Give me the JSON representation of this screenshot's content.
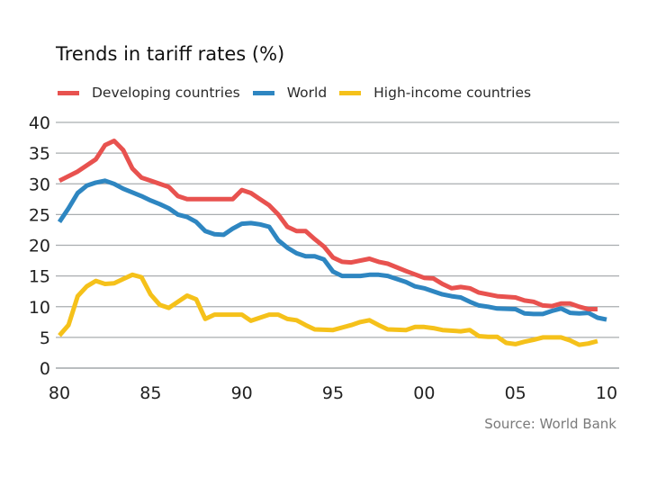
{
  "chart_data": {
    "type": "line",
    "title": "Trends in tariff rates (%)",
    "xlabel": "",
    "ylabel": "",
    "source": "Source: World Bank",
    "xlim": [
      1980,
      2010
    ],
    "ylim": [
      0,
      40
    ],
    "grid": true,
    "legend_position": "top-left",
    "x_ticks": [
      1980,
      1985,
      1990,
      1995,
      2000,
      2005,
      2010
    ],
    "x_tick_labels": [
      "80",
      "85",
      "90",
      "95",
      "00",
      "05",
      "10"
    ],
    "y_ticks": [
      0,
      5,
      10,
      15,
      20,
      25,
      30,
      35,
      40
    ],
    "y_tick_labels": [
      "0",
      "5",
      "10",
      "15",
      "20",
      "25",
      "30",
      "35",
      "40"
    ],
    "series": [
      {
        "name": "Developing countries",
        "color": "#e8524f",
        "x": [
          1980,
          1981,
          1982,
          1982.5,
          1983,
          1983.5,
          1984,
          1984.5,
          1985,
          1986,
          1986.5,
          1987,
          1988,
          1989,
          1989.5,
          1990,
          1990.5,
          1991,
          1991.5,
          1992,
          1992.5,
          1993,
          1993.5,
          1994,
          1994.5,
          1995,
          1995.5,
          1996,
          1997,
          1997.5,
          1998,
          1999,
          2000,
          2000.5,
          2001,
          2001.5,
          2002,
          2002.5,
          2003,
          2003.5,
          2004,
          2005,
          2005.5,
          2006,
          2006.5,
          2007,
          2007.5,
          2008,
          2008.5,
          2009,
          2009.5
        ],
        "y": [
          30.5,
          32,
          34,
          36.3,
          37,
          35.5,
          32.5,
          31,
          30.5,
          29.5,
          28,
          27.5,
          27.5,
          27.5,
          27.5,
          29,
          28.5,
          27.5,
          26.5,
          25,
          23,
          22.3,
          22.3,
          21,
          19.8,
          18,
          17.3,
          17.2,
          17.8,
          17.3,
          17,
          15.8,
          14.7,
          14.6,
          13.7,
          13,
          13.2,
          13,
          12.3,
          12,
          11.7,
          11.5,
          11,
          10.8,
          10.2,
          10.1,
          10.5,
          10.5,
          10,
          9.6,
          9.6
        ]
      },
      {
        "name": "World",
        "color": "#2e86c1",
        "x": [
          1980,
          1980.5,
          1981,
          1981.5,
          1982,
          1982.5,
          1983,
          1983.5,
          1984,
          1984.5,
          1985,
          1985.5,
          1986,
          1986.5,
          1987,
          1987.5,
          1988,
          1988.5,
          1989,
          1989.5,
          1990,
          1990.5,
          1991,
          1991.5,
          1992,
          1992.5,
          1993,
          1993.5,
          1994,
          1994.5,
          1995,
          1995.5,
          1996,
          1996.5,
          1997,
          1997.5,
          1998,
          1999,
          1999.5,
          2000,
          2000.5,
          2001,
          2001.5,
          2002,
          2002.5,
          2003,
          2003.5,
          2004,
          2005,
          2005.5,
          2006,
          2006.5,
          2007,
          2007.5,
          2008,
          2008.5,
          2009,
          2009.5,
          2010
        ],
        "y": [
          23.8,
          26,
          28.5,
          29.7,
          30.2,
          30.5,
          30,
          29.2,
          28.6,
          28,
          27.3,
          26.7,
          26,
          25,
          24.6,
          23.8,
          22.3,
          21.8,
          21.7,
          22.7,
          23.5,
          23.6,
          23.4,
          23,
          20.8,
          19.6,
          18.7,
          18.2,
          18.2,
          17.7,
          15.7,
          15,
          15,
          15,
          15.2,
          15.2,
          15,
          14,
          13.3,
          13,
          12.5,
          12,
          11.7,
          11.5,
          10.8,
          10.2,
          10,
          9.7,
          9.6,
          8.9,
          8.8,
          8.8,
          9.3,
          9.7,
          9,
          8.9,
          9,
          8.2,
          7.9
        ]
      },
      {
        "name": "High-income countries",
        "color": "#f5c11a",
        "x": [
          1980,
          1980.5,
          1981,
          1981.5,
          1982,
          1982.5,
          1983,
          1983.5,
          1984,
          1984.5,
          1985,
          1985.5,
          1986,
          1986.5,
          1987,
          1987.5,
          1988,
          1988.5,
          1989,
          1990,
          1990.5,
          1991,
          1991.5,
          1992,
          1992.5,
          1993,
          1993.5,
          1994,
          1995,
          1996,
          1996.5,
          1997,
          1997.5,
          1998,
          1999,
          1999.5,
          2000,
          2000.5,
          2001,
          2002,
          2002.5,
          2003,
          2003.5,
          2004,
          2004.5,
          2005,
          2005.5,
          2006,
          2006.5,
          2007,
          2007.5,
          2008,
          2008.5,
          2009,
          2009.5
        ],
        "y": [
          5.3,
          7,
          11.7,
          13.3,
          14.2,
          13.7,
          13.8,
          14.5,
          15.2,
          14.8,
          12,
          10.3,
          9.8,
          10.8,
          11.8,
          11.2,
          8,
          8.7,
          8.7,
          8.7,
          7.7,
          8.2,
          8.7,
          8.7,
          8,
          7.8,
          7,
          6.3,
          6.2,
          7,
          7.5,
          7.8,
          7,
          6.3,
          6.2,
          6.7,
          6.7,
          6.5,
          6.2,
          6,
          6.2,
          5.2,
          5.1,
          5.1,
          4.1,
          3.9,
          4.3,
          4.6,
          5,
          5,
          5,
          4.5,
          3.8,
          4,
          4.4
        ]
      }
    ]
  }
}
